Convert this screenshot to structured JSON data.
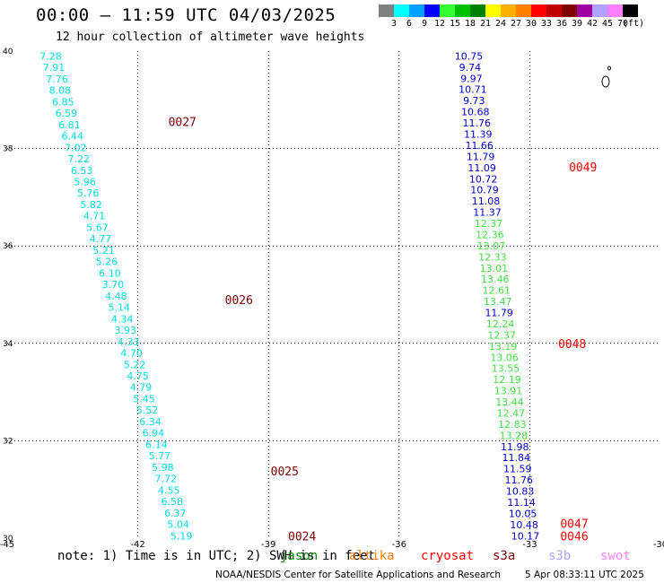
{
  "title": "00:00 – 11:59 UTC 04/03/2025",
  "subtitle": "12 hour collection of altimeter wave heights",
  "colorbar": {
    "colors": [
      "#808080",
      "#00ffff",
      "#00a0ff",
      "#0000ff",
      "#33ff33",
      "#00c000",
      "#008000",
      "#ffff00",
      "#ffb000",
      "#ff8000",
      "#ff0000",
      "#c00000",
      "#800000",
      "#a000a0",
      "#b0a0ff",
      "#ff80ff",
      "#000000"
    ],
    "labels": [
      "3",
      "6",
      "9",
      "12",
      "15",
      "18",
      "21",
      "24",
      "27",
      "30",
      "33",
      "36",
      "39",
      "42",
      "45",
      "70",
      "(ft)"
    ]
  },
  "chart_data": {
    "type": "scatter",
    "xlim": [
      -45,
      -30
    ],
    "ylim": [
      30,
      40
    ],
    "x_ticks": [
      "-45",
      "-42",
      "-39",
      "-36",
      "-33",
      "-30"
    ],
    "y_ticks": [
      "40",
      "38",
      "36",
      "34",
      "32",
      "30"
    ],
    "grid": true,
    "tracks": [
      {
        "pass": "0027",
        "pass_at": [
          -41.3,
          38.55
        ],
        "color": "#800000"
      },
      {
        "pass": "0026",
        "pass_at": [
          -40.0,
          34.9
        ],
        "color": "#800000"
      },
      {
        "pass": "0025",
        "pass_at": [
          -38.95,
          31.38
        ],
        "color": "#800000"
      },
      {
        "pass": "0024",
        "pass_at": [
          -38.55,
          30.05
        ],
        "color": "#800000"
      },
      {
        "pass": "0049",
        "pass_at": [
          -32.1,
          37.62
        ],
        "color": "#ff0000"
      },
      {
        "pass": "0048",
        "pass_at": [
          -32.35,
          34.0
        ],
        "color": "#ff0000"
      },
      {
        "pass": "0047",
        "pass_at": [
          -32.3,
          30.3
        ],
        "color": "#ff0000"
      },
      {
        "pass": "0046",
        "pass_at": [
          -32.3,
          30.05
        ],
        "color": "#ff0000"
      }
    ],
    "left_track": {
      "x_start": -44.0,
      "x_end": -41.0,
      "y_start": 39.9,
      "y_end": 30.05,
      "values": [
        "7.28",
        "7.91",
        "7.76",
        "8.08",
        "6.85",
        "6.59",
        "6.81",
        "6.44",
        "7.02",
        "7.22",
        "6.53",
        "5.96",
        "5.76",
        "5.82",
        "4.71",
        "5.67",
        "4.77",
        "5.21",
        "5.26",
        "6.10",
        "3.70",
        "4.48",
        "5.14",
        "4.34",
        "3.93",
        "4.33",
        "4.70",
        "5.22",
        "4.75",
        "4.79",
        "5.45",
        "5.52",
        "6.34",
        "6.94",
        "6.14",
        "5.77",
        "5.98",
        "7.72",
        "4.55",
        "6.58",
        "6.37",
        "5.04",
        "5.19"
      ],
      "colors": [
        "#00e0e0",
        "#00e0e0",
        "#00e0e0",
        "#00e0e0",
        "#00e0e0",
        "#00e0e0",
        "#00e0e0",
        "#00e0e0",
        "#00e0e0",
        "#00e0e0",
        "#00e0e0",
        "#00e0e0",
        "#00e0e0",
        "#00e0e0",
        "#00e0e0",
        "#00e0e0",
        "#00e0e0",
        "#00e0e0",
        "#00e0e0",
        "#00e0e0",
        "#00e0e0",
        "#00e0e0",
        "#00e0e0",
        "#00e0e0",
        "#00e0e0",
        "#00e0e0",
        "#00e0e0",
        "#00e0e0",
        "#00e0e0",
        "#00e0e0",
        "#00e0e0",
        "#00e0e0",
        "#00e0e0",
        "#00e0e0",
        "#00e0e0",
        "#00e0e0",
        "#00e0e0",
        "#00e0e0",
        "#00e0e0",
        "#00e0e0",
        "#00e0e0",
        "#00e0e0",
        "#00e0e0"
      ]
    },
    "right_track": {
      "x_start": -34.4,
      "x_end": -33.1,
      "y_start": 39.9,
      "y_end": 30.05,
      "values": [
        "10.75",
        "9.74",
        "9.97",
        "10.71",
        "9.73",
        "10.68",
        "11.76",
        "11.39",
        "11.66",
        "11.79",
        "11.09",
        "10.72",
        "10.79",
        "11.08",
        "11.37",
        "12.37",
        "12.36",
        "13.07",
        "12.33",
        "13.01",
        "13.46",
        "12.61",
        "13.47",
        "11.79",
        "12.24",
        "12.37",
        "13.19",
        "13.06",
        "13.55",
        "12.19",
        "13.91",
        "13.44",
        "12.47",
        "12.83",
        "13.28",
        "11.98",
        "11.84",
        "11.59",
        "11.76",
        "10.83",
        "11.14",
        "10.05",
        "10.48",
        "10.17"
      ],
      "colors": [
        "#0000cc",
        "#0000cc",
        "#0000cc",
        "#0000cc",
        "#0000cc",
        "#0000cc",
        "#0000cc",
        "#0000cc",
        "#0000cc",
        "#0000cc",
        "#0000cc",
        "#0000cc",
        "#0000cc",
        "#0000cc",
        "#0000cc",
        "#44dd44",
        "#44dd44",
        "#44dd44",
        "#44dd44",
        "#44dd44",
        "#44dd44",
        "#44dd44",
        "#44dd44",
        "#0000cc",
        "#44dd44",
        "#44dd44",
        "#44dd44",
        "#44dd44",
        "#44dd44",
        "#44dd44",
        "#44dd44",
        "#44dd44",
        "#44dd44",
        "#44dd44",
        "#44dd44",
        "#0000cc",
        "#0000cc",
        "#0000cc",
        "#0000cc",
        "#0000cc",
        "#0000cc",
        "#0000cc",
        "#0000cc",
        "#0000cc"
      ]
    }
  },
  "note": {
    "prefix": "note: 1) Time is in UTC; 2) SWH is in feet",
    "satellites": [
      {
        "name": "jason",
        "color": "#008000"
      },
      {
        "name": "altika",
        "color": "#ff8000"
      },
      {
        "name": "cryosat",
        "color": "#ff0000"
      },
      {
        "name": "s3a",
        "color": "#800000"
      },
      {
        "name": "s3b",
        "color": "#b0a0ff"
      },
      {
        "name": "swot",
        "color": "#ff80ff"
      }
    ]
  },
  "footer": {
    "left": "NOAA/NESDIS Center for Satellite Applications and Research",
    "right": "5 Apr 08:33:11 UTC 2025"
  }
}
